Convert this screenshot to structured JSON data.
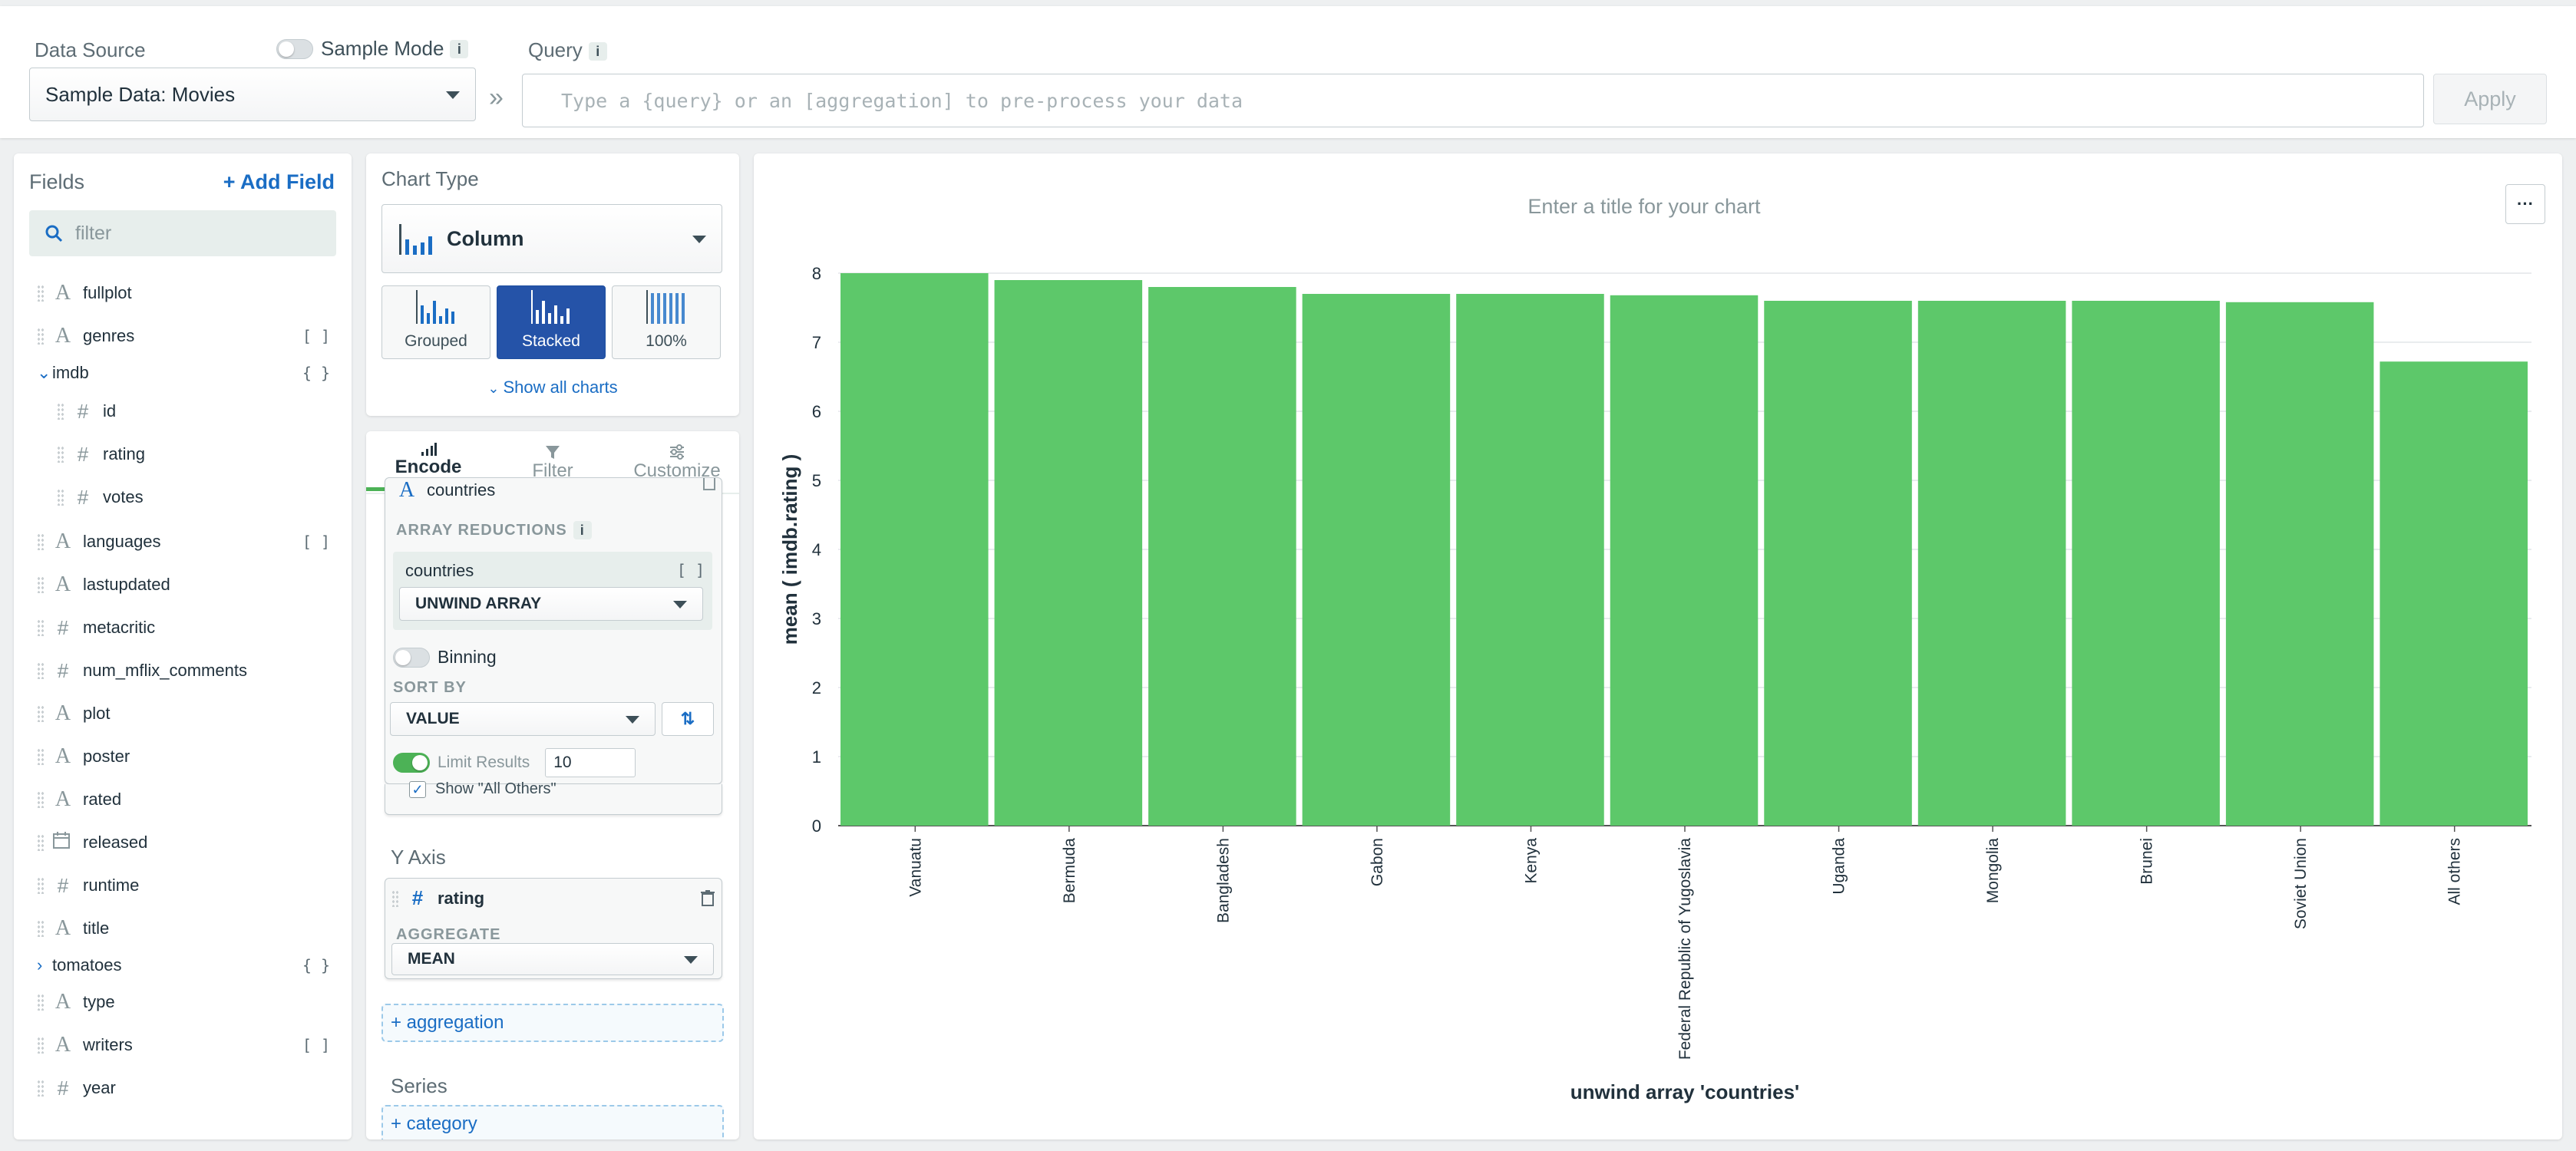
{
  "top": {
    "data_source_label": "Data Source",
    "sample_mode_label": "Sample Mode",
    "info": "i",
    "query_label": "Query",
    "source_value": "Sample Data: Movies",
    "chevron": "»",
    "query_placeholder": "Type a {query} or an [aggregation] to pre-process your data",
    "apply": "Apply"
  },
  "fields": {
    "title": "Fields",
    "add_field": "+ Add Field",
    "filter_placeholder": "filter",
    "items": [
      {
        "name": "fullplot",
        "type": "A"
      },
      {
        "name": "genres",
        "type": "A",
        "badge": "[ ]"
      },
      {
        "name": "imdb",
        "type": "",
        "badge": "{ }",
        "expanded": true
      },
      {
        "name": "id",
        "type": "#"
      },
      {
        "name": "rating",
        "type": "#"
      },
      {
        "name": "votes",
        "type": "#"
      },
      {
        "name": "languages",
        "type": "A",
        "badge": "[ ]"
      },
      {
        "name": "lastupdated",
        "type": "A"
      },
      {
        "name": "metacritic",
        "type": "#"
      },
      {
        "name": "num_mflix_comments",
        "type": "#"
      },
      {
        "name": "plot",
        "type": "A"
      },
      {
        "name": "poster",
        "type": "A"
      },
      {
        "name": "rated",
        "type": "A"
      },
      {
        "name": "released",
        "type": "calendar"
      },
      {
        "name": "runtime",
        "type": "#"
      },
      {
        "name": "title",
        "type": "A"
      },
      {
        "name": "tomatoes",
        "type": "",
        "badge": "{ }",
        "expanded": false
      },
      {
        "name": "type",
        "type": "A"
      },
      {
        "name": "writers",
        "type": "A",
        "badge": "[ ]"
      },
      {
        "name": "year",
        "type": "#"
      }
    ]
  },
  "chart_type": {
    "label": "Chart Type",
    "selected": "Column",
    "variants": [
      "Grouped",
      "Stacked",
      "100%"
    ],
    "active_variant": "Stacked",
    "show_all": "Show all charts"
  },
  "tabs": [
    "Encode",
    "Filter",
    "Customize"
  ],
  "encode": {
    "x_field": "countries",
    "array_reductions": "ARRAY REDUCTIONS",
    "reduction_field": "countries",
    "reduction_value": "UNWIND ARRAY",
    "binning": "Binning",
    "sort_by": "SORT BY",
    "sort_value": "VALUE",
    "limit_label": "Limit Results",
    "limit_value": "10",
    "show_all_others": "Show \"All Others\"",
    "y_axis": "Y Axis",
    "y_field": "rating",
    "aggregate": "AGGREGATE",
    "aggregate_value": "MEAN",
    "add_aggregation": "+ aggregation",
    "series": "Series",
    "add_category": "+ category"
  },
  "chart": {
    "title_placeholder": "Enter a title for your chart",
    "menu": "···"
  },
  "chart_data": {
    "type": "bar",
    "color": "#5dc86a",
    "categories": [
      "Vanuatu",
      "Bermuda",
      "Bangladesh",
      "Gabon",
      "Kenya",
      "Federal Republic of Yugoslavia",
      "Uganda",
      "Mongolia",
      "Brunei",
      "Soviet Union",
      "All others"
    ],
    "values": [
      8.0,
      7.9,
      7.8,
      7.7,
      7.7,
      7.68,
      7.6,
      7.6,
      7.6,
      7.58,
      6.72
    ],
    "ylim": [
      0,
      8
    ],
    "yticks": [
      "0",
      "1",
      "2",
      "3",
      "4",
      "5",
      "6",
      "7",
      "8"
    ],
    "ylabel": "mean ( imdb.rating )",
    "xlabel": "unwind array 'countries'",
    "grid": true
  }
}
